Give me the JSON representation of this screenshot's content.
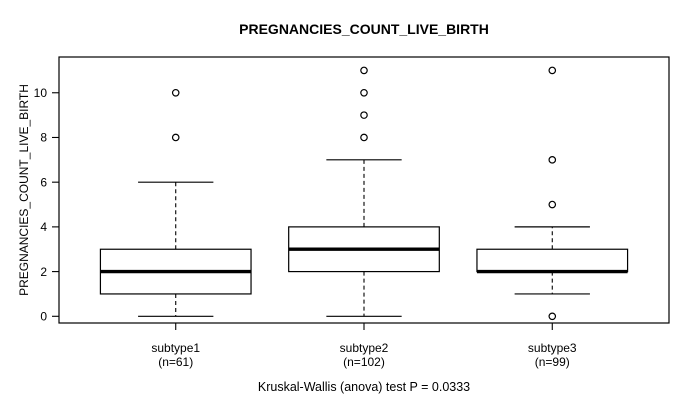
{
  "chart_data": {
    "type": "boxplot",
    "title": "PREGNANCIES_COUNT_LIVE_BIRTH",
    "ylabel": "PREGNANCIES_COUNT_LIVE_BIRTH",
    "footer": "Kruskal-Wallis (anova) test P = 0.0333",
    "categories": [
      "subtype1",
      "subtype2",
      "subtype3"
    ],
    "category_sublabels": [
      "(n=61)",
      "(n=102)",
      "(n=99)"
    ],
    "yticks": [
      0,
      2,
      4,
      6,
      8,
      10
    ],
    "ylim": [
      -0.3,
      11.6
    ],
    "grid": false,
    "legend": "none",
    "series": [
      {
        "name": "subtype1",
        "n": 61,
        "whisker_low": 0,
        "q1": 1,
        "median": 2,
        "q3": 3,
        "whisker_high": 6,
        "outliers": [
          8,
          10
        ]
      },
      {
        "name": "subtype2",
        "n": 102,
        "whisker_low": 0,
        "q1": 2,
        "median": 3,
        "q3": 4,
        "whisker_high": 7,
        "outliers": [
          8,
          9,
          10,
          11
        ]
      },
      {
        "name": "subtype3",
        "n": 99,
        "whisker_low": 1,
        "q1": 2,
        "median": 2,
        "q3": 3,
        "whisker_high": 4,
        "outliers": [
          0,
          5,
          7,
          11
        ]
      }
    ],
    "colors": {
      "line": "#000000",
      "box_fill": "#ffffff",
      "background": "#ffffff"
    }
  }
}
